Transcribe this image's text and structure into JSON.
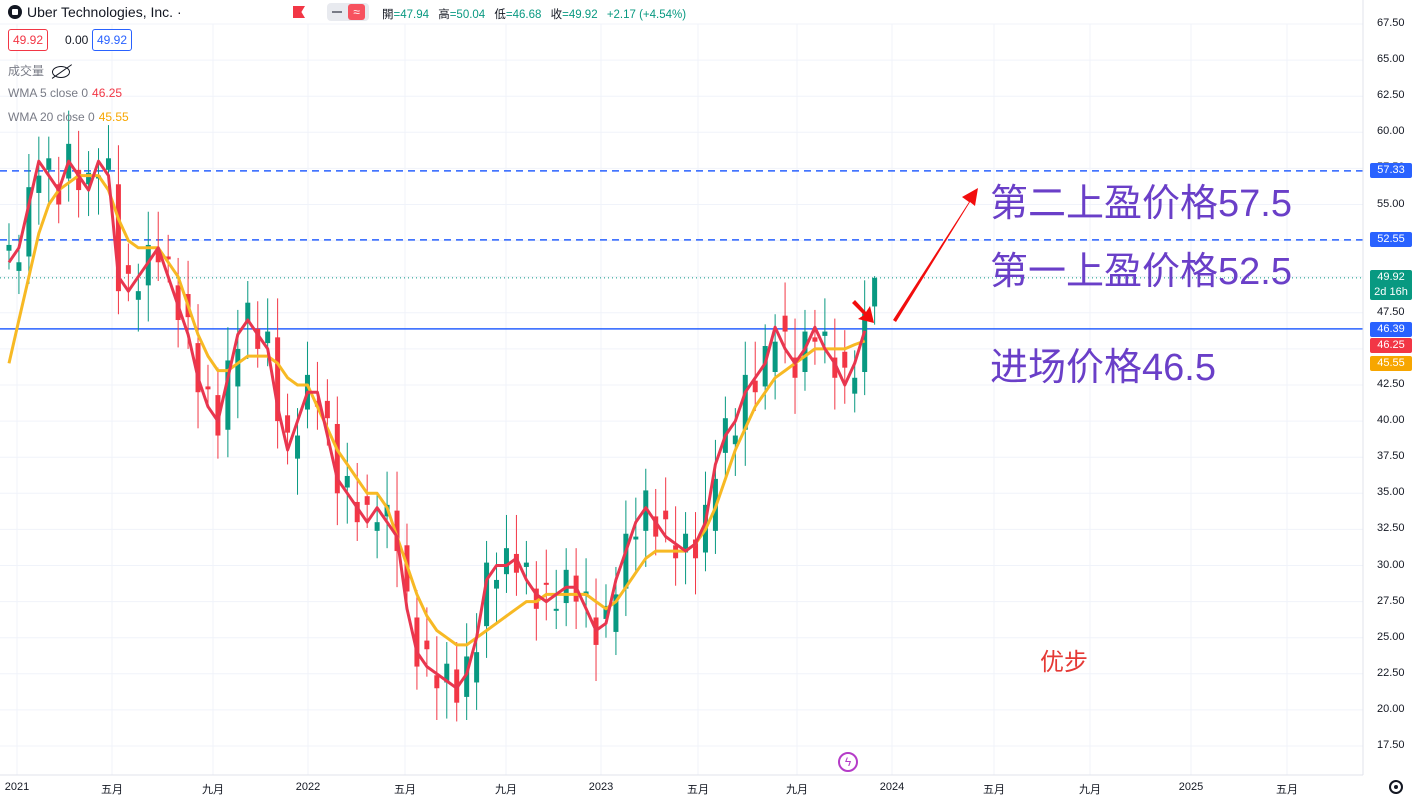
{
  "header": {
    "title": "Uber Technologies, Inc. ·",
    "open_label": "開",
    "open": "=47.94",
    "high_label": "高",
    "high": "=50.04",
    "low_label": "低",
    "low": "=46.68",
    "close_label": "收",
    "close": "=49.92",
    "change": "+2.17 (+4.54%)"
  },
  "prices": {
    "bid": "49.92",
    "spread": "0.00",
    "ask": "49.92"
  },
  "legend": {
    "volume": "成交量",
    "wma5_label": "WMA 5 close 0",
    "wma5_value": "46.25",
    "wma20_label": "WMA 20 close 0",
    "wma20_value": "45.55"
  },
  "colors": {
    "up": "#089981",
    "down": "#f23645",
    "wma5": "#e8364f",
    "wma20": "#f7b924",
    "level": "#2962ff",
    "annotation": "#6a3fc8"
  },
  "chart_data": {
    "type": "candlestick",
    "y_ticks": [
      "67.50",
      "65.00",
      "62.50",
      "60.00",
      "57.50",
      "55.00",
      "52.50",
      "50.00",
      "47.50",
      "45.00",
      "42.50",
      "40.00",
      "37.50",
      "35.00",
      "32.50",
      "30.00",
      "27.50",
      "25.00",
      "22.50",
      "20.00",
      "17.50"
    ],
    "x_ticks": [
      "2021",
      "五月",
      "九月",
      "2022",
      "五月",
      "九月",
      "2023",
      "五月",
      "九月",
      "2024",
      "五月",
      "九月",
      "2025",
      "五月"
    ],
    "ylim": [
      16.5,
      68.5
    ],
    "horizontal_lines": [
      {
        "value": 57.33,
        "label": "57.33",
        "style": "dashed"
      },
      {
        "value": 52.55,
        "label": "52.55",
        "style": "dashed"
      },
      {
        "value": 46.39,
        "label": "46.39",
        "style": "solid"
      }
    ],
    "price_tags": [
      {
        "value": 49.92,
        "label": "49.92",
        "sub": "2d 16h",
        "color": "#089981"
      },
      {
        "value": 46.25,
        "label": "46.25",
        "color": "#f23645"
      },
      {
        "value": 45.55,
        "label": "45.55",
        "color": "#f7a600"
      }
    ],
    "wma5": [
      [
        0.5,
        51
      ],
      [
        1.5,
        52
      ],
      [
        2.5,
        55
      ],
      [
        3.5,
        58
      ],
      [
        4.5,
        57
      ],
      [
        5.5,
        56
      ],
      [
        6.5,
        58
      ],
      [
        7.5,
        57
      ],
      [
        8.5,
        56
      ],
      [
        9.5,
        58
      ],
      [
        10.5,
        57
      ],
      [
        11.5,
        50
      ],
      [
        12.5,
        49
      ],
      [
        13.5,
        50
      ],
      [
        14.5,
        51
      ],
      [
        15.5,
        52
      ],
      [
        16.5,
        50
      ],
      [
        17.5,
        48
      ],
      [
        18.5,
        46
      ],
      [
        19.5,
        43
      ],
      [
        20.5,
        41
      ],
      [
        21.5,
        40
      ],
      [
        22.5,
        43
      ],
      [
        23.5,
        46
      ],
      [
        24.5,
        47
      ],
      [
        25.5,
        46
      ],
      [
        26.5,
        45
      ],
      [
        27.5,
        41
      ],
      [
        28.5,
        38
      ],
      [
        29.5,
        40
      ],
      [
        30.5,
        42
      ],
      [
        31.5,
        42
      ],
      [
        32.5,
        39
      ],
      [
        33.5,
        36
      ],
      [
        34.5,
        35
      ],
      [
        35.5,
        34
      ],
      [
        36.5,
        33
      ],
      [
        37.5,
        34
      ],
      [
        38.5,
        33
      ],
      [
        39.5,
        32
      ],
      [
        40.5,
        27
      ],
      [
        41.5,
        24
      ],
      [
        42.5,
        23
      ],
      [
        43.5,
        22.5
      ],
      [
        44.5,
        22
      ],
      [
        45.5,
        21.5
      ],
      [
        46.5,
        22.5
      ],
      [
        47.5,
        25
      ],
      [
        48.5,
        29
      ],
      [
        49.5,
        30
      ],
      [
        50.5,
        30
      ],
      [
        51.5,
        30.5
      ],
      [
        52.5,
        29
      ],
      [
        53.5,
        28
      ],
      [
        54.5,
        27.5
      ],
      [
        55.5,
        28
      ],
      [
        56.5,
        28.5
      ],
      [
        57.5,
        28.5
      ],
      [
        58.5,
        27
      ],
      [
        59.5,
        25.5
      ],
      [
        60.5,
        26
      ],
      [
        61.5,
        29
      ],
      [
        62.5,
        31
      ],
      [
        63.5,
        33
      ],
      [
        64.5,
        34
      ],
      [
        65.5,
        33
      ],
      [
        66.5,
        32
      ],
      [
        67.5,
        31.5
      ],
      [
        68.5,
        31
      ],
      [
        69.5,
        31.5
      ],
      [
        70.5,
        33
      ],
      [
        71.5,
        37
      ],
      [
        72.5,
        39
      ],
      [
        73.5,
        40
      ],
      [
        74.5,
        42
      ],
      [
        75.5,
        43
      ],
      [
        76.5,
        44
      ],
      [
        77.5,
        46.5
      ],
      [
        78.5,
        45
      ],
      [
        79.5,
        44
      ],
      [
        80.5,
        45
      ],
      [
        81.5,
        46.5
      ],
      [
        82.5,
        45
      ],
      [
        83.5,
        44
      ],
      [
        84.5,
        42.5
      ],
      [
        85.5,
        44
      ],
      [
        86.5,
        46.25
      ]
    ],
    "wma20": [
      [
        0.5,
        44
      ],
      [
        1.5,
        47
      ],
      [
        2.5,
        50
      ],
      [
        3.5,
        53
      ],
      [
        4.5,
        55
      ],
      [
        5.5,
        56
      ],
      [
        6.5,
        56.5
      ],
      [
        7.5,
        57
      ],
      [
        8.5,
        57
      ],
      [
        9.5,
        57
      ],
      [
        10.5,
        56
      ],
      [
        11.5,
        54
      ],
      [
        12.5,
        52.5
      ],
      [
        13.5,
        52
      ],
      [
        14.5,
        52
      ],
      [
        15.5,
        52
      ],
      [
        16.5,
        51
      ],
      [
        17.5,
        50
      ],
      [
        18.5,
        48
      ],
      [
        19.5,
        46
      ],
      [
        20.5,
        44.5
      ],
      [
        21.5,
        43.5
      ],
      [
        22.5,
        43.5
      ],
      [
        23.5,
        44
      ],
      [
        24.5,
        44.5
      ],
      [
        25.5,
        44.5
      ],
      [
        26.5,
        44.5
      ],
      [
        27.5,
        44
      ],
      [
        28.5,
        43
      ],
      [
        29.5,
        42.5
      ],
      [
        30.5,
        42.5
      ],
      [
        31.5,
        41
      ],
      [
        32.5,
        39.5
      ],
      [
        33.5,
        38
      ],
      [
        34.5,
        37
      ],
      [
        35.5,
        36
      ],
      [
        36.5,
        35
      ],
      [
        37.5,
        35
      ],
      [
        38.5,
        34
      ],
      [
        39.5,
        32
      ],
      [
        40.5,
        30
      ],
      [
        41.5,
        28
      ],
      [
        42.5,
        26.5
      ],
      [
        43.5,
        25.5
      ],
      [
        44.5,
        25
      ],
      [
        45.5,
        24.5
      ],
      [
        46.5,
        24.5
      ],
      [
        47.5,
        25
      ],
      [
        48.5,
        25.5
      ],
      [
        49.5,
        26
      ],
      [
        50.5,
        26.5
      ],
      [
        51.5,
        27
      ],
      [
        52.5,
        27.5
      ],
      [
        53.5,
        27.5
      ],
      [
        54.5,
        28
      ],
      [
        55.5,
        28
      ],
      [
        56.5,
        28
      ],
      [
        57.5,
        28
      ],
      [
        58.5,
        28
      ],
      [
        59.5,
        27.5
      ],
      [
        60.5,
        27
      ],
      [
        61.5,
        27.5
      ],
      [
        62.5,
        28.5
      ],
      [
        63.5,
        29.5
      ],
      [
        64.5,
        30.5
      ],
      [
        65.5,
        31
      ],
      [
        66.5,
        31
      ],
      [
        67.5,
        31
      ],
      [
        68.5,
        31
      ],
      [
        69.5,
        31.5
      ],
      [
        70.5,
        32.5
      ],
      [
        71.5,
        34
      ],
      [
        72.5,
        36
      ],
      [
        73.5,
        38
      ],
      [
        74.5,
        39.5
      ],
      [
        75.5,
        41
      ],
      [
        76.5,
        42
      ],
      [
        77.5,
        43
      ],
      [
        78.5,
        43.5
      ],
      [
        79.5,
        44
      ],
      [
        80.5,
        44.5
      ],
      [
        81.5,
        45
      ],
      [
        82.5,
        45
      ],
      [
        83.5,
        45
      ],
      [
        84.5,
        45
      ],
      [
        85.5,
        45.3
      ],
      [
        86.5,
        45.55
      ]
    ]
  },
  "annotations": {
    "target2": "第二上盈价格57.5",
    "target1": "第一上盈价格52.5",
    "entry": "进场价格46.5"
  },
  "watermark": "优步"
}
